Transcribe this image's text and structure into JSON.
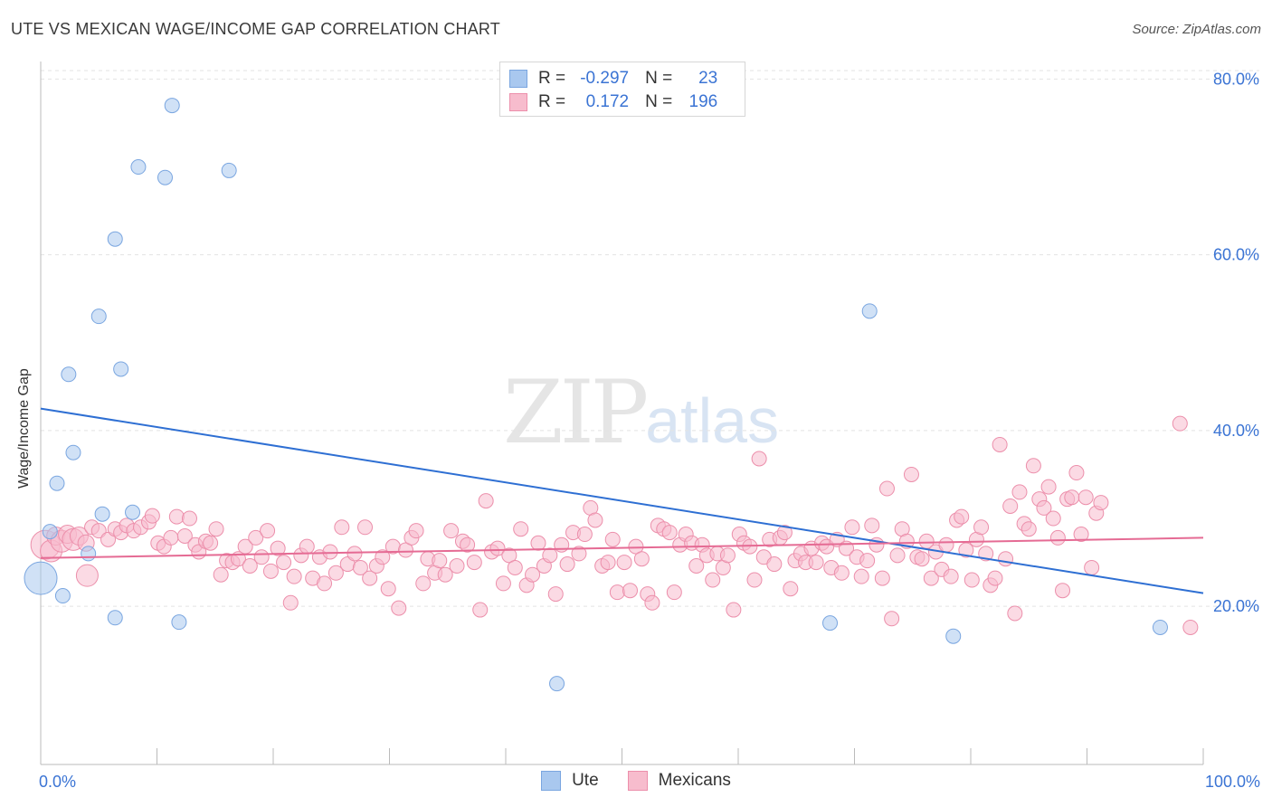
{
  "title": "UTE VS MEXICAN WAGE/INCOME GAP CORRELATION CHART",
  "source": "Source: ZipAtlas.com",
  "watermark": {
    "zip": "ZIP",
    "atlas": "atlas"
  },
  "stats": [
    {
      "r_label": "R =",
      "r_value": "-0.297",
      "n_label": "N =",
      "n_value": "23",
      "color": "#a9c8ef",
      "border": "#7aa6e0"
    },
    {
      "r_label": "R =",
      "r_value": "0.172",
      "n_label": "N =",
      "n_value": "196",
      "color": "#f7bccd",
      "border": "#ec8fab"
    }
  ],
  "legend": [
    {
      "label": "Ute",
      "color": "#a9c8ef",
      "border": "#7aa6e0"
    },
    {
      "label": "Mexicans",
      "color": "#f7bccd",
      "border": "#ec8fab"
    }
  ],
  "chart_data": {
    "type": "scatter",
    "title": "UTE VS MEXICAN WAGE/INCOME GAP CORRELATION CHART",
    "xlabel": "",
    "ylabel": "Wage/Income Gap",
    "xlim": [
      0,
      100
    ],
    "ylim": [
      2,
      82
    ],
    "x_tick_labels": [
      "0.0%",
      "100.0%"
    ],
    "y_ticks": [
      20,
      40,
      60,
      80
    ],
    "y_tick_labels": [
      "20.0%",
      "40.0%",
      "60.0%",
      "80.0%"
    ],
    "grid": true,
    "legend_position": "bottom",
    "series": [
      {
        "name": "Ute",
        "color": "#a9c8ef",
        "stroke": "#7aa6e0",
        "line_color": "#2e6fd3",
        "trend": [
          [
            0,
            42.5
          ],
          [
            100,
            21.5
          ]
        ],
        "points": [
          [
            0.0,
            23.2,
            18
          ],
          [
            0.8,
            28.5,
            8
          ],
          [
            1.4,
            34.0,
            8
          ],
          [
            1.9,
            21.2,
            8
          ],
          [
            2.4,
            46.4,
            8
          ],
          [
            2.8,
            37.5,
            8
          ],
          [
            4.1,
            26.0,
            8
          ],
          [
            5.0,
            53.0,
            8
          ],
          [
            5.3,
            30.5,
            8
          ],
          [
            6.4,
            61.8,
            8
          ],
          [
            6.4,
            18.7,
            8
          ],
          [
            6.9,
            47.0,
            8
          ],
          [
            7.9,
            30.7,
            8
          ],
          [
            8.4,
            70.0,
            8
          ],
          [
            10.7,
            68.8,
            8
          ],
          [
            11.3,
            77.0,
            8
          ],
          [
            11.9,
            18.2,
            8
          ],
          [
            16.2,
            69.6,
            8
          ],
          [
            44.4,
            11.2,
            8
          ],
          [
            67.9,
            18.1,
            8
          ],
          [
            71.3,
            53.6,
            8
          ],
          [
            78.5,
            16.6,
            8
          ],
          [
            96.3,
            17.6,
            8
          ]
        ]
      },
      {
        "name": "Mexicans",
        "color": "#f7bccd",
        "stroke": "#ec8fab",
        "line_color": "#e56b94",
        "trend": [
          [
            0,
            25.5
          ],
          [
            100,
            27.8
          ]
        ],
        "points": [
          [
            0.4,
            27.0,
            16
          ],
          [
            0.9,
            26.3,
            12
          ],
          [
            1.3,
            28.0,
            10
          ],
          [
            1.8,
            27.4,
            12
          ],
          [
            2.3,
            28.2,
            10
          ],
          [
            2.8,
            27.6,
            12
          ],
          [
            3.3,
            28.0,
            10
          ],
          [
            3.9,
            27.2,
            9
          ],
          [
            4.4,
            29.0,
            8
          ],
          [
            5.0,
            28.6,
            8
          ],
          [
            4.0,
            23.5,
            12
          ],
          [
            5.8,
            27.6,
            8
          ],
          [
            6.4,
            28.8,
            8
          ],
          [
            6.9,
            28.4,
            8
          ],
          [
            7.4,
            29.2,
            8
          ],
          [
            8.0,
            28.6,
            8
          ],
          [
            8.6,
            29.0,
            8
          ],
          [
            9.3,
            29.6,
            8
          ],
          [
            9.6,
            30.3,
            8
          ],
          [
            10.1,
            27.2,
            8
          ],
          [
            10.6,
            26.8,
            8
          ],
          [
            11.2,
            27.8,
            8
          ],
          [
            11.7,
            30.2,
            8
          ],
          [
            12.4,
            28.0,
            8
          ],
          [
            12.8,
            30.0,
            8
          ],
          [
            13.3,
            27.0,
            8
          ],
          [
            13.6,
            26.2,
            8
          ],
          [
            14.2,
            27.4,
            8
          ],
          [
            14.6,
            27.2,
            8
          ],
          [
            15.1,
            28.8,
            8
          ],
          [
            15.5,
            23.6,
            8
          ],
          [
            16.0,
            25.2,
            8
          ],
          [
            16.5,
            25.0,
            8
          ],
          [
            17.0,
            25.4,
            8
          ],
          [
            17.6,
            26.8,
            8
          ],
          [
            18.0,
            24.6,
            8
          ],
          [
            18.5,
            27.8,
            8
          ],
          [
            19.0,
            25.6,
            8
          ],
          [
            19.5,
            28.6,
            8
          ],
          [
            19.8,
            24.0,
            8
          ],
          [
            20.4,
            26.6,
            8
          ],
          [
            20.9,
            25.0,
            8
          ],
          [
            21.5,
            20.4,
            8
          ],
          [
            21.8,
            23.4,
            8
          ],
          [
            22.4,
            25.8,
            8
          ],
          [
            22.9,
            26.8,
            8
          ],
          [
            23.4,
            23.2,
            8
          ],
          [
            24.0,
            25.6,
            8
          ],
          [
            24.4,
            22.6,
            8
          ],
          [
            24.9,
            26.2,
            8
          ],
          [
            25.4,
            23.8,
            8
          ],
          [
            25.9,
            29.0,
            8
          ],
          [
            26.4,
            24.8,
            8
          ],
          [
            27.0,
            26.0,
            8
          ],
          [
            27.5,
            24.4,
            8
          ],
          [
            27.9,
            29.0,
            8
          ],
          [
            28.3,
            23.2,
            8
          ],
          [
            28.9,
            24.6,
            8
          ],
          [
            29.4,
            25.6,
            8
          ],
          [
            29.9,
            22.0,
            8
          ],
          [
            30.3,
            26.8,
            8
          ],
          [
            30.8,
            19.8,
            8
          ],
          [
            31.4,
            26.4,
            8
          ],
          [
            31.9,
            27.8,
            8
          ],
          [
            32.3,
            28.6,
            8
          ],
          [
            32.9,
            22.6,
            8
          ],
          [
            33.3,
            25.4,
            8
          ],
          [
            33.9,
            23.8,
            8
          ],
          [
            34.3,
            25.2,
            8
          ],
          [
            34.8,
            23.6,
            8
          ],
          [
            35.3,
            28.6,
            8
          ],
          [
            35.8,
            24.6,
            8
          ],
          [
            36.3,
            27.4,
            8
          ],
          [
            36.7,
            27.0,
            8
          ],
          [
            37.3,
            25.0,
            8
          ],
          [
            37.8,
            19.6,
            8
          ],
          [
            38.3,
            32.0,
            8
          ],
          [
            38.8,
            26.2,
            8
          ],
          [
            39.3,
            26.6,
            8
          ],
          [
            39.8,
            22.6,
            8
          ],
          [
            40.3,
            25.8,
            8
          ],
          [
            40.8,
            24.4,
            8
          ],
          [
            41.3,
            28.8,
            8
          ],
          [
            41.8,
            22.4,
            8
          ],
          [
            42.3,
            23.6,
            8
          ],
          [
            42.8,
            27.2,
            8
          ],
          [
            43.3,
            24.6,
            8
          ],
          [
            43.8,
            25.8,
            8
          ],
          [
            44.3,
            21.4,
            8
          ],
          [
            44.8,
            27.0,
            8
          ],
          [
            45.3,
            24.8,
            8
          ],
          [
            45.8,
            28.4,
            8
          ],
          [
            46.3,
            26.0,
            8
          ],
          [
            46.8,
            28.2,
            8
          ],
          [
            47.3,
            31.2,
            8
          ],
          [
            47.7,
            29.8,
            8
          ],
          [
            48.3,
            24.6,
            8
          ],
          [
            48.8,
            25.0,
            8
          ],
          [
            49.2,
            27.6,
            8
          ],
          [
            49.6,
            21.6,
            8
          ],
          [
            50.2,
            25.0,
            8
          ],
          [
            50.7,
            21.8,
            8
          ],
          [
            51.2,
            26.8,
            8
          ],
          [
            51.7,
            25.4,
            8
          ],
          [
            52.2,
            21.4,
            8
          ],
          [
            52.6,
            20.4,
            8
          ],
          [
            53.1,
            29.2,
            8
          ],
          [
            53.6,
            28.8,
            8
          ],
          [
            54.1,
            28.4,
            8
          ],
          [
            54.5,
            21.6,
            8
          ],
          [
            55.0,
            27.0,
            8
          ],
          [
            55.5,
            28.2,
            8
          ],
          [
            56.0,
            27.2,
            8
          ],
          [
            56.4,
            24.6,
            8
          ],
          [
            56.9,
            27.0,
            8
          ],
          [
            57.3,
            25.8,
            8
          ],
          [
            57.8,
            23.0,
            8
          ],
          [
            58.2,
            26.0,
            8
          ],
          [
            58.7,
            24.4,
            8
          ],
          [
            59.1,
            25.8,
            8
          ],
          [
            59.6,
            19.6,
            8
          ],
          [
            60.1,
            28.2,
            8
          ],
          [
            60.5,
            27.2,
            8
          ],
          [
            61.0,
            26.8,
            8
          ],
          [
            61.4,
            23.0,
            8
          ],
          [
            61.8,
            36.8,
            8
          ],
          [
            62.2,
            25.6,
            8
          ],
          [
            62.7,
            27.6,
            8
          ],
          [
            63.1,
            24.8,
            8
          ],
          [
            63.6,
            27.8,
            8
          ],
          [
            64.0,
            28.4,
            8
          ],
          [
            64.5,
            22.0,
            8
          ],
          [
            64.9,
            25.2,
            8
          ],
          [
            65.4,
            26.0,
            8
          ],
          [
            65.8,
            25.0,
            8
          ],
          [
            66.3,
            26.6,
            8
          ],
          [
            66.7,
            25.0,
            8
          ],
          [
            67.2,
            27.2,
            8
          ],
          [
            67.6,
            26.8,
            8
          ],
          [
            68.0,
            24.4,
            8
          ],
          [
            68.5,
            27.6,
            8
          ],
          [
            68.9,
            23.8,
            8
          ],
          [
            69.3,
            26.6,
            8
          ],
          [
            69.8,
            29.0,
            8
          ],
          [
            70.2,
            25.6,
            8
          ],
          [
            70.6,
            23.4,
            8
          ],
          [
            71.1,
            25.2,
            8
          ],
          [
            71.5,
            29.2,
            8
          ],
          [
            71.9,
            27.0,
            8
          ],
          [
            72.4,
            23.2,
            8
          ],
          [
            72.8,
            33.4,
            8
          ],
          [
            73.2,
            18.6,
            8
          ],
          [
            73.7,
            25.8,
            8
          ],
          [
            74.1,
            28.8,
            8
          ],
          [
            74.5,
            27.4,
            8
          ],
          [
            74.9,
            35.0,
            8
          ],
          [
            75.4,
            25.6,
            8
          ],
          [
            75.8,
            25.4,
            8
          ],
          [
            76.2,
            27.4,
            8
          ],
          [
            76.6,
            23.2,
            8
          ],
          [
            77.0,
            26.2,
            8
          ],
          [
            77.5,
            24.2,
            8
          ],
          [
            77.9,
            27.0,
            8
          ],
          [
            78.3,
            23.4,
            8
          ],
          [
            78.8,
            29.8,
            8
          ],
          [
            79.2,
            30.2,
            8
          ],
          [
            79.6,
            26.4,
            8
          ],
          [
            80.1,
            23.0,
            8
          ],
          [
            80.5,
            27.6,
            8
          ],
          [
            80.9,
            29.0,
            8
          ],
          [
            81.3,
            26.0,
            8
          ],
          [
            81.7,
            22.4,
            8
          ],
          [
            82.1,
            23.2,
            8
          ],
          [
            82.5,
            38.4,
            8
          ],
          [
            83.0,
            25.4,
            8
          ],
          [
            83.4,
            31.4,
            8
          ],
          [
            83.8,
            19.2,
            8
          ],
          [
            84.2,
            33.0,
            8
          ],
          [
            84.6,
            29.4,
            8
          ],
          [
            85.0,
            28.8,
            8
          ],
          [
            85.4,
            36.0,
            8
          ],
          [
            85.9,
            32.2,
            8
          ],
          [
            86.3,
            31.2,
            8
          ],
          [
            86.7,
            33.6,
            8
          ],
          [
            87.1,
            30.0,
            8
          ],
          [
            87.5,
            27.8,
            8
          ],
          [
            87.9,
            21.8,
            8
          ],
          [
            88.3,
            32.2,
            8
          ],
          [
            88.7,
            32.4,
            8
          ],
          [
            89.1,
            35.2,
            8
          ],
          [
            89.5,
            28.2,
            8
          ],
          [
            89.9,
            32.4,
            8
          ],
          [
            90.4,
            24.4,
            8
          ],
          [
            90.8,
            30.6,
            8
          ],
          [
            91.2,
            31.8,
            8
          ],
          [
            98.0,
            40.8,
            8
          ],
          [
            98.9,
            17.6,
            8
          ]
        ]
      }
    ]
  }
}
